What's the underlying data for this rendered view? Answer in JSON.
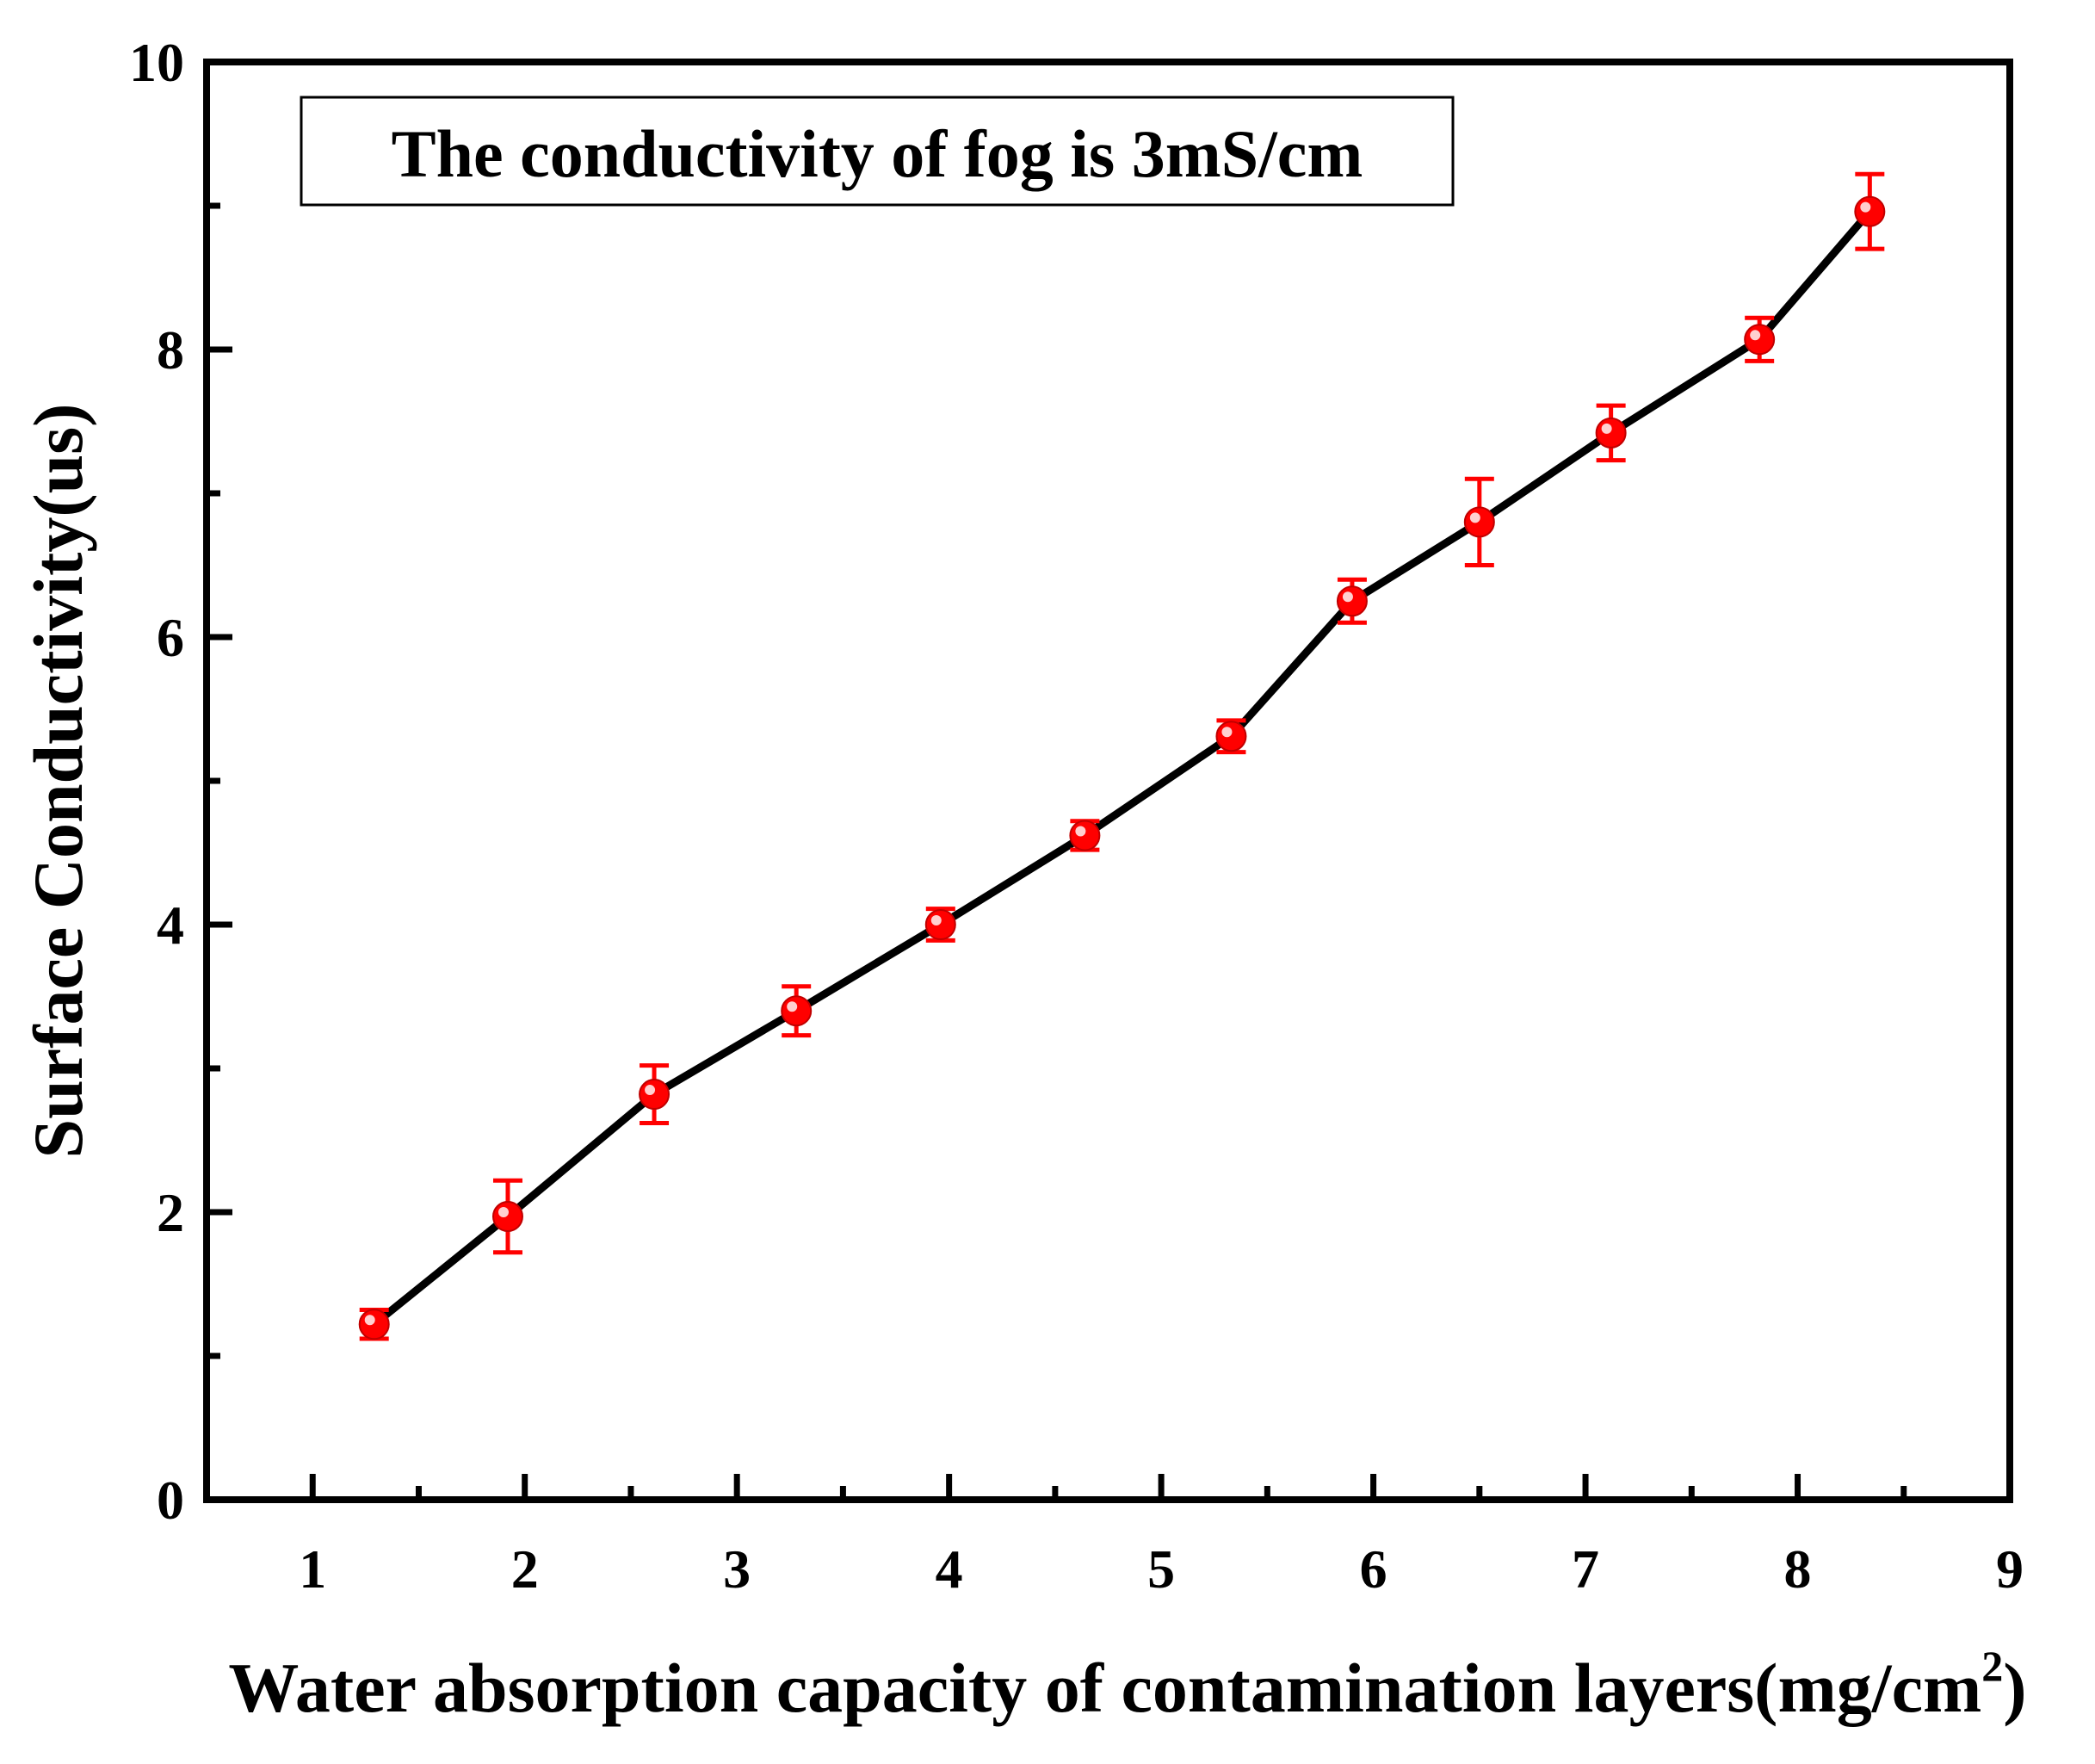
{
  "chart_data": {
    "type": "line",
    "title": "",
    "annotation": "The conductivity of fog is 3mS/cm",
    "xlabel": "Water absorption capacity of contamination layers(mg/cm",
    "xlabel_superscript": "2",
    "xlabel_suffix": ")",
    "ylabel": "Surface Conductivity(us)",
    "xlim": [
      0.5,
      9
    ],
    "ylim": [
      0,
      10
    ],
    "x_ticks": [
      1,
      2,
      3,
      4,
      5,
      6,
      7,
      8,
      9
    ],
    "x_tick_labels": [
      "1",
      "2",
      "3",
      "4",
      "5",
      "6",
      "7",
      "8",
      "9"
    ],
    "y_ticks": [
      0,
      2,
      4,
      6,
      8,
      10
    ],
    "y_tick_labels": [
      "0",
      "2",
      "4",
      "6",
      "8",
      "10"
    ],
    "grid": false,
    "series": [
      {
        "name": "Surface Conductivity",
        "line_color": "#000000",
        "marker_color": "#ff0000",
        "x": [
          1.29,
          1.92,
          2.61,
          3.28,
          3.96,
          4.64,
          5.33,
          5.9,
          6.5,
          7.12,
          7.82,
          8.34
        ],
        "y": [
          1.22,
          1.97,
          2.82,
          3.4,
          4.0,
          4.62,
          5.31,
          6.25,
          6.8,
          7.42,
          8.07,
          8.96
        ],
        "error": [
          0.1,
          0.25,
          0.2,
          0.17,
          0.11,
          0.1,
          0.11,
          0.15,
          0.3,
          0.19,
          0.15,
          0.26
        ]
      }
    ]
  }
}
